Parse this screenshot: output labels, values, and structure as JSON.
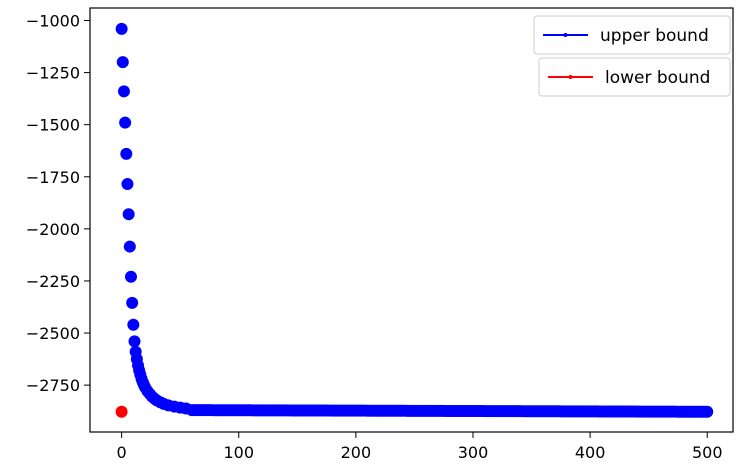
{
  "chart_data": {
    "type": "scatter",
    "title": "",
    "xlabel": "",
    "ylabel": "",
    "xlim": [
      -27,
      522
    ],
    "ylim": [
      -2975,
      -940
    ],
    "grid": false,
    "legend_placement": "top-right",
    "x_ticks": [
      0,
      100,
      200,
      300,
      400,
      500
    ],
    "x_tick_labels": [
      "0",
      "100",
      "200",
      "300",
      "400",
      "500"
    ],
    "y_ticks": [
      -1000,
      -1250,
      -1500,
      -1750,
      -2000,
      -2250,
      -2500,
      -2750
    ],
    "y_tick_labels": [
      "−1000",
      "−1250",
      "−1500",
      "−1750",
      "−2000",
      "−2250",
      "−2500",
      "−2750"
    ],
    "series": [
      {
        "name": "upper bound",
        "color": "#0000ff",
        "marker": "circle",
        "legend_line": true,
        "tail": {
          "from": 60,
          "to": 500,
          "step": 2,
          "start_value": -2870,
          "end_value": -2878
        },
        "points": [
          [
            0,
            -1040
          ],
          [
            1,
            -1200
          ],
          [
            2,
            -1340
          ],
          [
            3,
            -1490
          ],
          [
            4,
            -1640
          ],
          [
            5,
            -1785
          ],
          [
            6,
            -1930
          ],
          [
            7,
            -2085
          ],
          [
            8,
            -2230
          ],
          [
            9,
            -2355
          ],
          [
            10,
            -2460
          ],
          [
            11,
            -2540
          ],
          [
            12,
            -2590
          ],
          [
            13,
            -2625
          ],
          [
            14,
            -2655
          ],
          [
            15,
            -2680
          ],
          [
            16,
            -2700
          ],
          [
            17,
            -2720
          ],
          [
            18,
            -2735
          ],
          [
            19,
            -2748
          ],
          [
            20,
            -2760
          ],
          [
            22,
            -2778
          ],
          [
            24,
            -2792
          ],
          [
            26,
            -2805
          ],
          [
            28,
            -2815
          ],
          [
            30,
            -2823
          ],
          [
            33,
            -2832
          ],
          [
            36,
            -2840
          ],
          [
            40,
            -2847
          ],
          [
            45,
            -2853
          ],
          [
            50,
            -2858
          ],
          [
            55,
            -2862
          ]
        ]
      },
      {
        "name": "lower bound",
        "color": "#ff0000",
        "marker": "circle",
        "legend_line": true,
        "points": [
          [
            0,
            -2878
          ]
        ]
      }
    ]
  },
  "colors": {
    "axes": "#000000",
    "legend_border": "#cccccc",
    "background": "#ffffff"
  }
}
